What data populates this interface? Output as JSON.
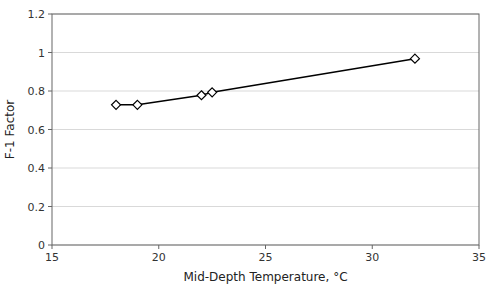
{
  "chart_data": {
    "type": "line",
    "x": [
      18,
      19,
      22,
      22.5,
      32
    ],
    "values": [
      0.728,
      0.728,
      0.778,
      0.793,
      0.968
    ],
    "xlabel": "Mid-Depth Temperature, °C",
    "ylabel": "F-1 Factor",
    "xlim": [
      15,
      35
    ],
    "ylim": [
      0,
      1.2
    ],
    "xticks": [
      15,
      20,
      25,
      30,
      35
    ],
    "yticks": [
      0,
      0.2,
      0.4,
      0.6,
      0.8,
      1,
      1.2
    ],
    "grid": true,
    "color": "#000000",
    "marker": "diamond",
    "line_style": "solid"
  }
}
